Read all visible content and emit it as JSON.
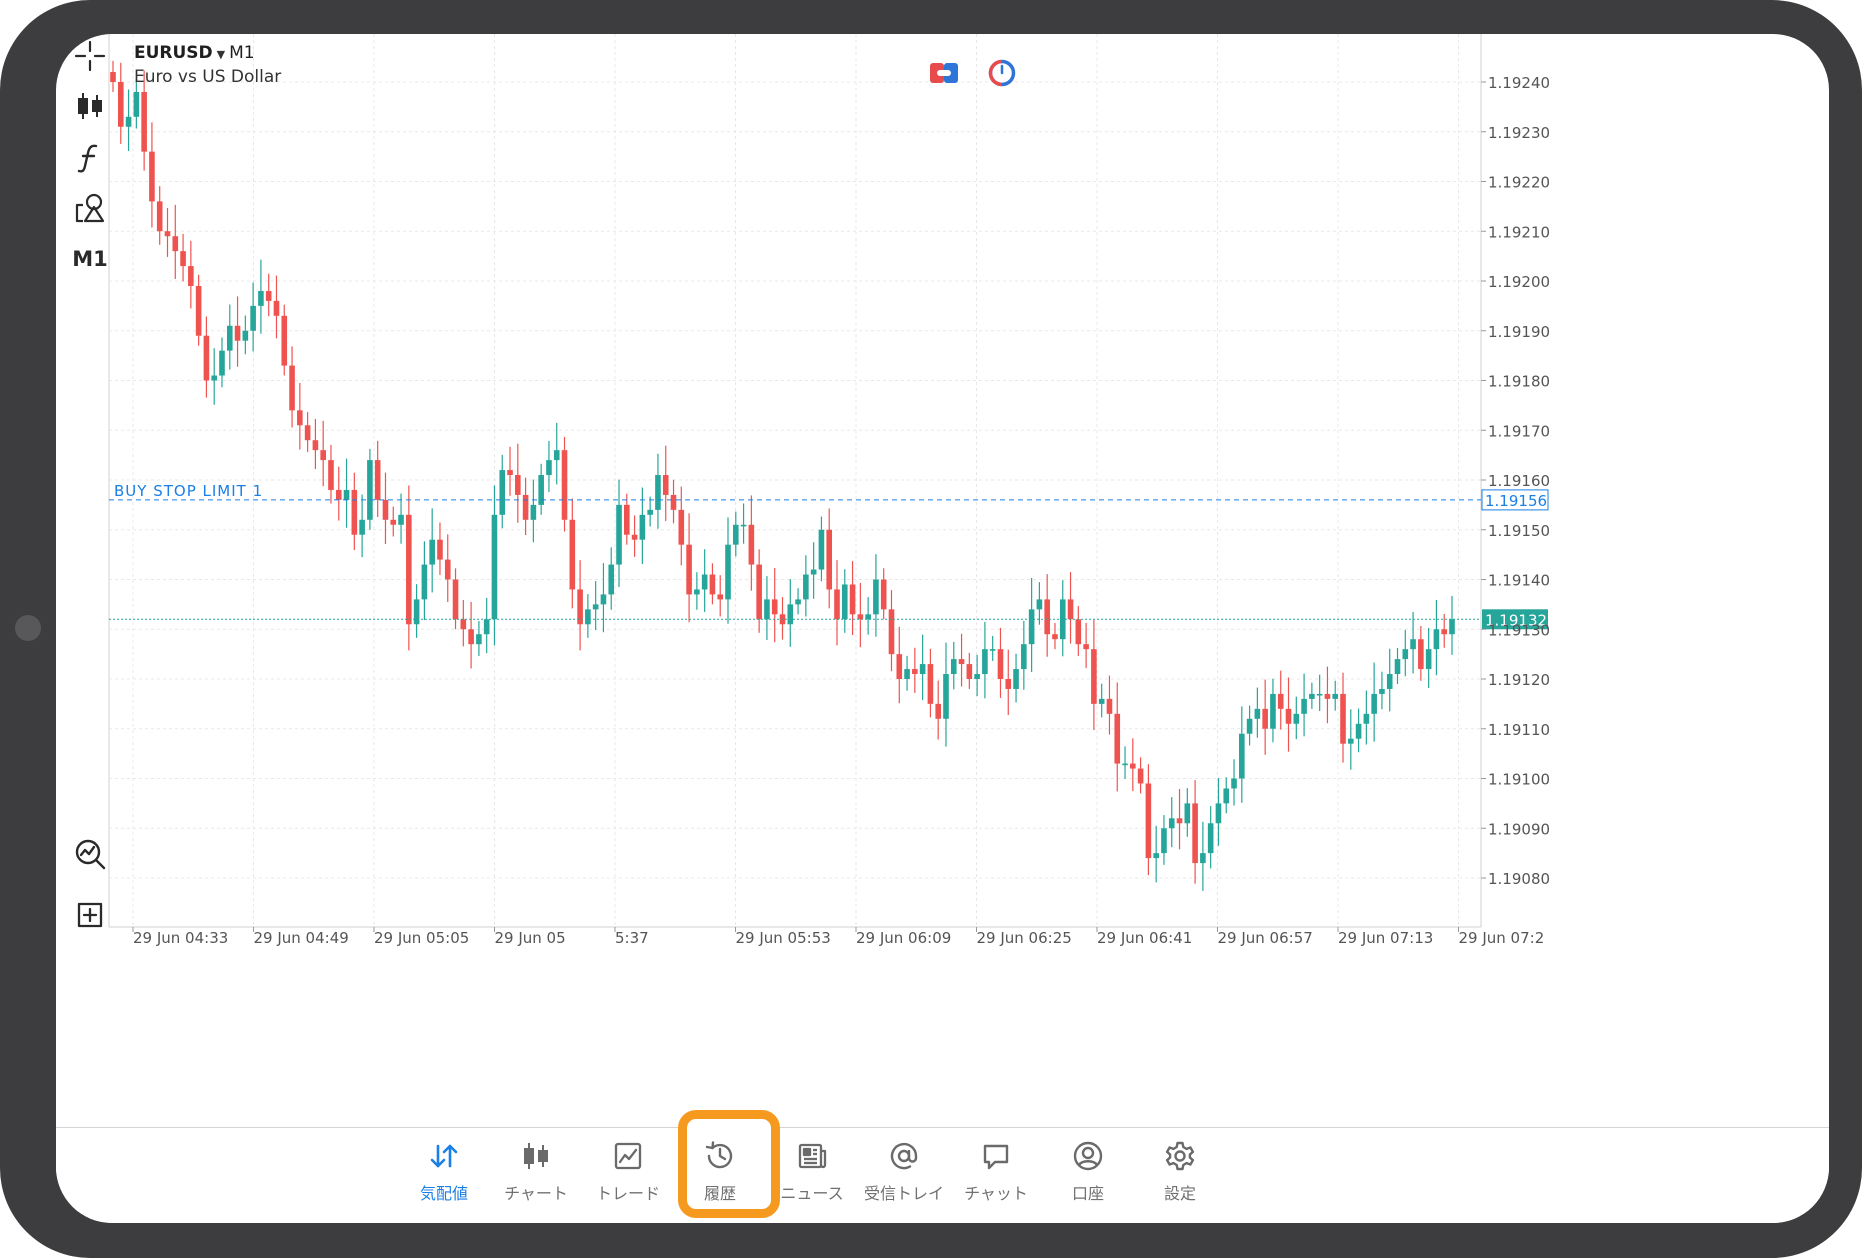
{
  "symbol": {
    "name": "EURUSD",
    "dropdown_glyph": "▼",
    "timeframe": "M1",
    "description": "Euro vs US Dollar"
  },
  "toolbar": {
    "items": [
      {
        "name": "crosshair",
        "icon": "crosshair-icon"
      },
      {
        "name": "chart-type",
        "icon": "candlestick-icon"
      },
      {
        "name": "indicators",
        "icon": "function-icon"
      },
      {
        "name": "objects",
        "icon": "shapes-icon"
      },
      {
        "name": "timeframe",
        "label": "M1"
      }
    ],
    "bottom_items": [
      {
        "name": "chart-zoom",
        "icon": "chart-magnify-icon"
      },
      {
        "name": "new-order",
        "icon": "add-order-icon"
      }
    ]
  },
  "header_icons": [
    "one-click-trading-icon",
    "timer-icon"
  ],
  "order_line": {
    "label": "BUY STOP LIMIT 1",
    "price": "1.19156",
    "color": "#1a7fe6"
  },
  "bid_line": {
    "price": "1.19132",
    "color": "#26a69a"
  },
  "colors": {
    "bull": "#26a69a",
    "bear": "#ef5350",
    "grid": "#e8e8e8",
    "highlight": "#f59a1f",
    "nav_active": "#1a7fe6"
  },
  "chart_data": {
    "type": "candlestick",
    "ylim": [
      1.19074,
      1.19248
    ],
    "y_ticks": [
      "1.19240",
      "1.19230",
      "1.19220",
      "1.19210",
      "1.19200",
      "1.19190",
      "1.19180",
      "1.19170",
      "1.19160",
      "1.19150",
      "1.19140",
      "1.19130",
      "1.19120",
      "1.19110",
      "1.19100",
      "1.19090",
      "1.19080"
    ],
    "x_ticks": [
      "29 Jun 04:33",
      "29 Jun 04:49",
      "29 Jun 05:05",
      "29 Jun 05",
      "5:37",
      "29 Jun 05:53",
      "29 Jun 06:09",
      "29 Jun 06:25",
      "29 Jun 06:41",
      "29 Jun 06:57",
      "29 Jun 07:13",
      "29 Jun 07:2"
    ],
    "grid": true,
    "closes": [
      1.1924,
      1.19231,
      1.19233,
      1.19238,
      1.19226,
      1.19216,
      1.1921,
      1.19209,
      1.19206,
      1.19203,
      1.19199,
      1.19189,
      1.1918,
      1.19181,
      1.19186,
      1.19191,
      1.19188,
      1.1919,
      1.19195,
      1.19198,
      1.19196,
      1.19193,
      1.19183,
      1.19174,
      1.19171,
      1.19168,
      1.19166,
      1.19164,
      1.19158,
      1.19156,
      1.19158,
      1.19149,
      1.19152,
      1.19164,
      1.19156,
      1.19152,
      1.19151,
      1.19153,
      1.19131,
      1.19136,
      1.19143,
      1.19148,
      1.19144,
      1.1914,
      1.19132,
      1.1913,
      1.19127,
      1.19129,
      1.19132,
      1.19153,
      1.19162,
      1.19161,
      1.19157,
      1.19152,
      1.19155,
      1.19161,
      1.19164,
      1.19166,
      1.19152,
      1.19138,
      1.19131,
      1.19134,
      1.19135,
      1.19137,
      1.19143,
      1.19155,
      1.19149,
      1.19148,
      1.19153,
      1.19154,
      1.19161,
      1.19157,
      1.19154,
      1.19147,
      1.19137,
      1.19138,
      1.19141,
      1.19137,
      1.19136,
      1.19147,
      1.19151,
      1.19151,
      1.19143,
      1.19132,
      1.19136,
      1.19133,
      1.19131,
      1.19135,
      1.19136,
      1.19141,
      1.19142,
      1.1915,
      1.19138,
      1.19132,
      1.19139,
      1.19133,
      1.19132,
      1.19133,
      1.1914,
      1.19134,
      1.19125,
      1.1912,
      1.19122,
      1.19121,
      1.19123,
      1.19115,
      1.19112,
      1.19121,
      1.19124,
      1.19123,
      1.1912,
      1.19121,
      1.19126,
      1.19126,
      1.1912,
      1.19118,
      1.19122,
      1.19127,
      1.19134,
      1.19136,
      1.19129,
      1.19128,
      1.19136,
      1.19132,
      1.19127,
      1.19126,
      1.19115,
      1.19116,
      1.19113,
      1.19103,
      1.19103,
      1.19102,
      1.19099,
      1.19084,
      1.19085,
      1.1909,
      1.19092,
      1.19091,
      1.19095,
      1.19083,
      1.19085,
      1.19091,
      1.19095,
      1.19098,
      1.191,
      1.19109,
      1.19112,
      1.19114,
      1.1911,
      1.19117,
      1.19114,
      1.19111,
      1.19113,
      1.19116,
      1.19117,
      1.19117,
      1.19116,
      1.19117,
      1.19107,
      1.19108,
      1.19111,
      1.19113,
      1.19117,
      1.19118,
      1.19121,
      1.19124,
      1.19126,
      1.19128,
      1.19122,
      1.19126,
      1.1913,
      1.19129,
      1.19132
    ],
    "open_first": 1.19242
  },
  "nav": {
    "items": [
      {
        "label": "気配値",
        "icon": "quotes-arrows-icon",
        "active": true
      },
      {
        "label": "チャート",
        "icon": "chart-candles-icon",
        "active": false
      },
      {
        "label": "トレード",
        "icon": "trade-chart-icon",
        "active": false,
        "highlighted": true
      },
      {
        "label": "履歴",
        "icon": "history-icon",
        "active": false
      },
      {
        "label": "ニュース",
        "icon": "news-icon",
        "active": false
      },
      {
        "label": "受信トレイ",
        "icon": "mailbox-at-icon",
        "active": false
      },
      {
        "label": "チャット",
        "icon": "chat-icon",
        "active": false
      },
      {
        "label": "口座",
        "icon": "account-icon",
        "active": false
      },
      {
        "label": "設定",
        "icon": "settings-gear-icon",
        "active": false
      }
    ]
  }
}
